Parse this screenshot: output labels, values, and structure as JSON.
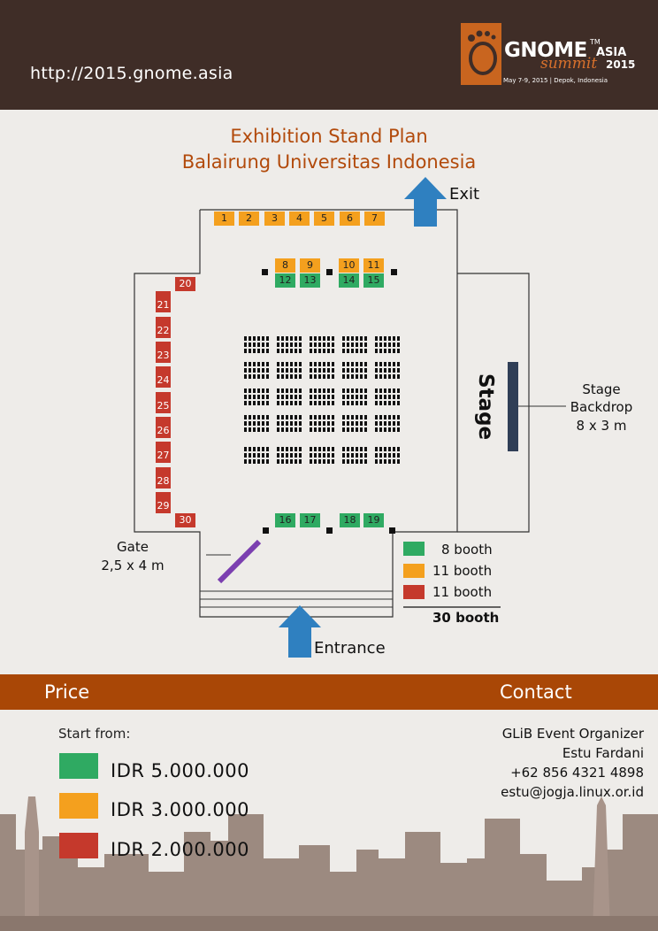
{
  "header": {
    "url": "http://2015.gnome.asia",
    "logo": {
      "gnome": "GNOME",
      "tm": "TM",
      "asia": "ASIA",
      "summit": "summit",
      "year": "2015",
      "date": "May 7-9, 2015 | Depok, Indonesia"
    }
  },
  "plan": {
    "title_line1": "Exhibition Stand Plan",
    "title_line2": "Balairung Universitas Indonesia",
    "exit_label": "Exit",
    "entrance_label": "Entrance",
    "stage_label": "Stage",
    "stage_backdrop_line1": "Stage",
    "stage_backdrop_line2": "Backdrop",
    "stage_backdrop_line3": "8 x 3 m",
    "gate_line1": "Gate",
    "gate_line2": "2,5 x 4 m",
    "booths": {
      "b1": "1",
      "b2": "2",
      "b3": "3",
      "b4": "4",
      "b5": "5",
      "b6": "6",
      "b7": "7",
      "b8": "8",
      "b9": "9",
      "b10": "10",
      "b11": "11",
      "b12": "12",
      "b13": "13",
      "b14": "14",
      "b15": "15",
      "b16": "16",
      "b17": "17",
      "b18": "18",
      "b19": "19",
      "b20": "20",
      "b21": "21",
      "b22": "22",
      "b23": "23",
      "b24": "24",
      "b25": "25",
      "b26": "26",
      "b27": "27",
      "b28": "28",
      "b29": "29",
      "b30": "30"
    },
    "legend": {
      "green": "8 booth",
      "orange": "11 booth",
      "red": "11 booth",
      "total": "30 booth"
    }
  },
  "price": {
    "title": "Price",
    "start_from": "Start from:",
    "green": "IDR 5.000.000",
    "orange": "IDR 3.000.000",
    "red": "IDR 2.000.000"
  },
  "contact": {
    "title": "Contact",
    "org": "GLiB Event Organizer",
    "name": "Estu Fardani",
    "phone": "+62 856 4321 4898",
    "email": "estu@jogja.linux.or.id"
  },
  "colors": {
    "green": "#2faa62",
    "orange": "#f4a01e",
    "red": "#c5392c",
    "header": "#3f2d27",
    "bar": "#a94706"
  }
}
